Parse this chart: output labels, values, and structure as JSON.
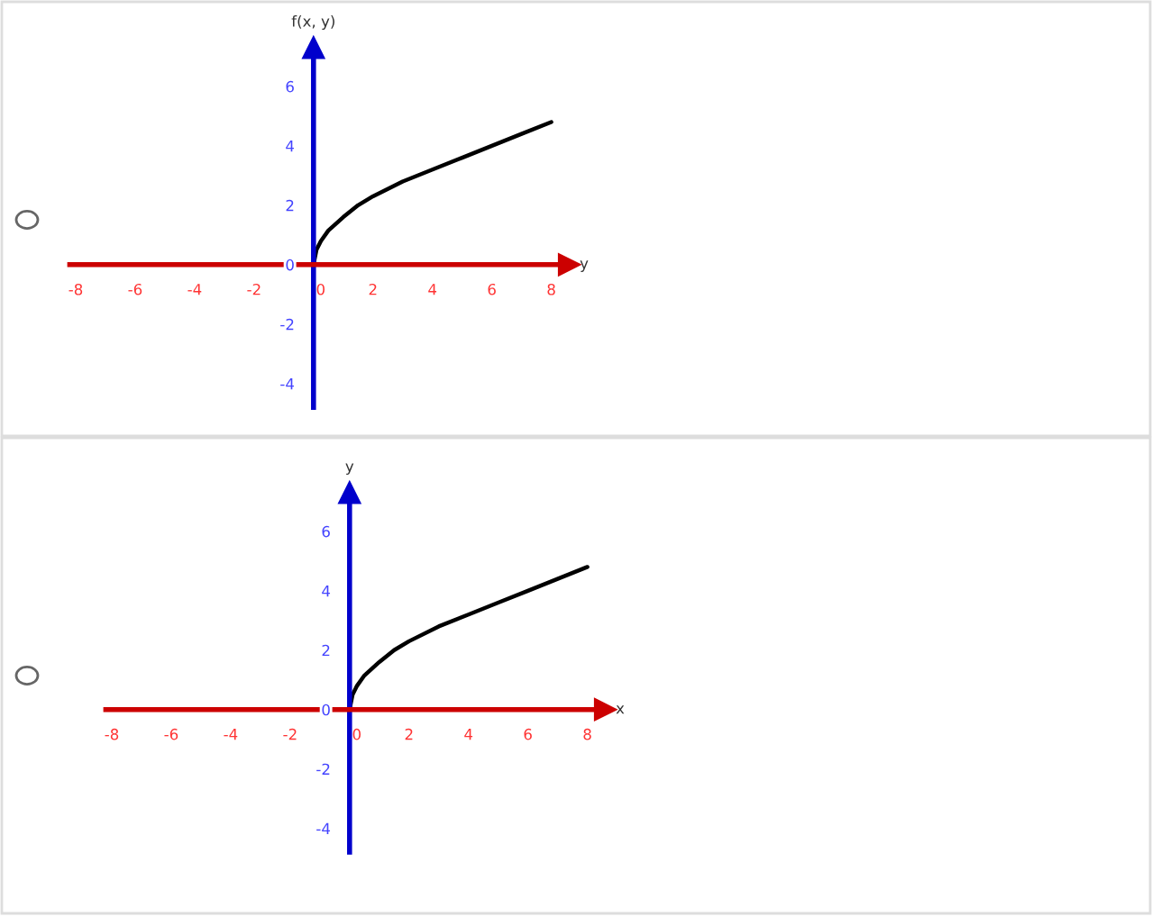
{
  "chart_data": [
    {
      "type": "line",
      "xlabel": "y",
      "ylabel": "f(x, y)",
      "x": [
        0,
        0.1,
        0.25,
        0.5,
        1,
        1.5,
        2,
        3,
        4,
        5,
        6,
        7,
        8
      ],
      "series": [
        {
          "color": "#000000",
          "values": [
            0,
            0.5,
            0.8,
            1.15,
            1.6,
            2.0,
            2.3,
            2.8,
            3.2,
            3.6,
            4.0,
            4.4,
            4.8
          ]
        }
      ],
      "xlim": [
        -8.2,
        8.6
      ],
      "ylim": [
        -4.8,
        7.3
      ],
      "xticks": [
        -8,
        -6,
        -4,
        -2,
        0,
        2,
        4,
        6,
        8
      ],
      "yticks": [
        -4,
        -2,
        0,
        2,
        4,
        6
      ],
      "grid": false
    },
    {
      "type": "line",
      "xlabel": "x",
      "ylabel": "y",
      "x": [
        0,
        0.1,
        0.25,
        0.5,
        1,
        1.5,
        2,
        3,
        4,
        5,
        6,
        7,
        8
      ],
      "series": [
        {
          "color": "#000000",
          "values": [
            0,
            0.5,
            0.8,
            1.15,
            1.6,
            2.0,
            2.3,
            2.8,
            3.2,
            3.6,
            4.0,
            4.4,
            4.8
          ]
        }
      ],
      "xlim": [
        -8.2,
        8.6
      ],
      "ylim": [
        -4.8,
        7.3
      ],
      "xticks": [
        -8,
        -6,
        -4,
        -2,
        0,
        2,
        4,
        6,
        8
      ],
      "yticks": [
        -4,
        -2,
        0,
        2,
        4,
        6
      ],
      "grid": false
    }
  ]
}
